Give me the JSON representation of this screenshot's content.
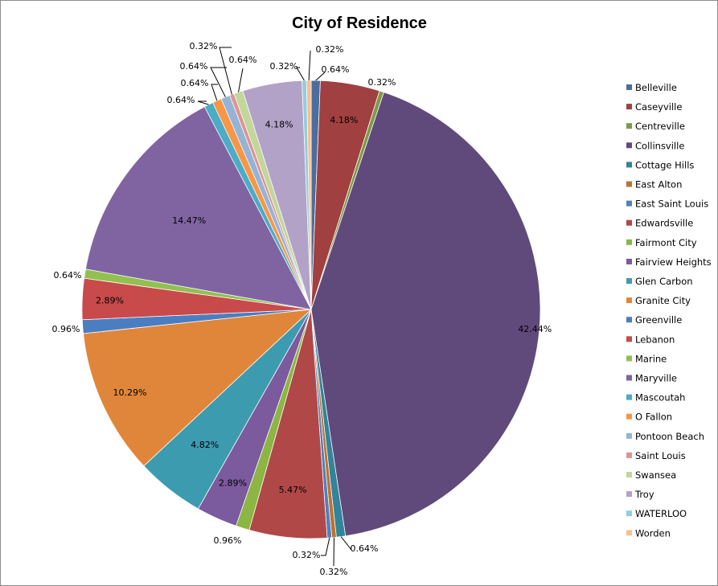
{
  "chart_data": {
    "type": "pie",
    "title": "City of Residence",
    "legend_position": "right",
    "slices": [
      {
        "label": "Belleville",
        "value": 0.64,
        "display": "0.64%",
        "color": "#4a6e9e"
      },
      {
        "label": "Caseyville",
        "value": 4.18,
        "display": "4.18%",
        "color": "#a04040"
      },
      {
        "label": "Centreville",
        "value": 0.32,
        "display": "0.32%",
        "color": "#7f9a48"
      },
      {
        "label": "Collinsville",
        "value": 42.44,
        "display": "42.44%",
        "color": "#604a7b"
      },
      {
        "label": "Cottage Hills",
        "value": 0.64,
        "display": "0.64%",
        "color": "#31849b"
      },
      {
        "label": "East Alton",
        "value": 0.32,
        "display": "0.32%",
        "color": "#c0712d"
      },
      {
        "label": "East Saint Louis",
        "value": 0.32,
        "display": "0.32%",
        "color": "#4f81bd"
      },
      {
        "label": "Edwardsville",
        "value": 5.47,
        "display": "5.47%",
        "color": "#b04848"
      },
      {
        "label": "Fairmont City",
        "value": 0.96,
        "display": "0.96%",
        "color": "#8db543"
      },
      {
        "label": "Fairview Heights",
        "value": 2.89,
        "display": "2.89%",
        "color": "#7b5a9e"
      },
      {
        "label": "Glen Carbon",
        "value": 4.82,
        "display": "4.82%",
        "color": "#3d9bb0"
      },
      {
        "label": "Granite City",
        "value": 10.29,
        "display": "10.29%",
        "color": "#e0863a"
      },
      {
        "label": "Greenville",
        "value": 0.96,
        "display": "0.96%",
        "color": "#4a7ec0"
      },
      {
        "label": "Lebanon",
        "value": 2.89,
        "display": "2.89%",
        "color": "#c84a4a"
      },
      {
        "label": "Marine",
        "value": 0.64,
        "display": "0.64%",
        "color": "#92c050"
      },
      {
        "label": "Maryville",
        "value": 14.47,
        "display": "14.47%",
        "color": "#8064a2"
      },
      {
        "label": "Mascoutah",
        "value": 0.64,
        "display": "0.64%",
        "color": "#4bacc6"
      },
      {
        "label": "O Fallon",
        "value": 0.64,
        "display": "0.64%",
        "color": "#f79646"
      },
      {
        "label": "Pontoon Beach",
        "value": 0.64,
        "display": "0.64%",
        "color": "#95b3d7"
      },
      {
        "label": "Saint Louis",
        "value": 0.32,
        "display": "0.32%",
        "color": "#da9694"
      },
      {
        "label": "Swansea",
        "value": 0.64,
        "display": "0.64%",
        "color": "#c3d69b"
      },
      {
        "label": "Troy",
        "value": 4.18,
        "display": "4.18%",
        "color": "#b3a2c7"
      },
      {
        "label": "WATERLOO",
        "value": 0.32,
        "display": "0.32%",
        "color": "#93cddd"
      },
      {
        "label": "Worden",
        "value": 0.32,
        "display": "0.32%",
        "color": "#fabf8f"
      }
    ]
  }
}
